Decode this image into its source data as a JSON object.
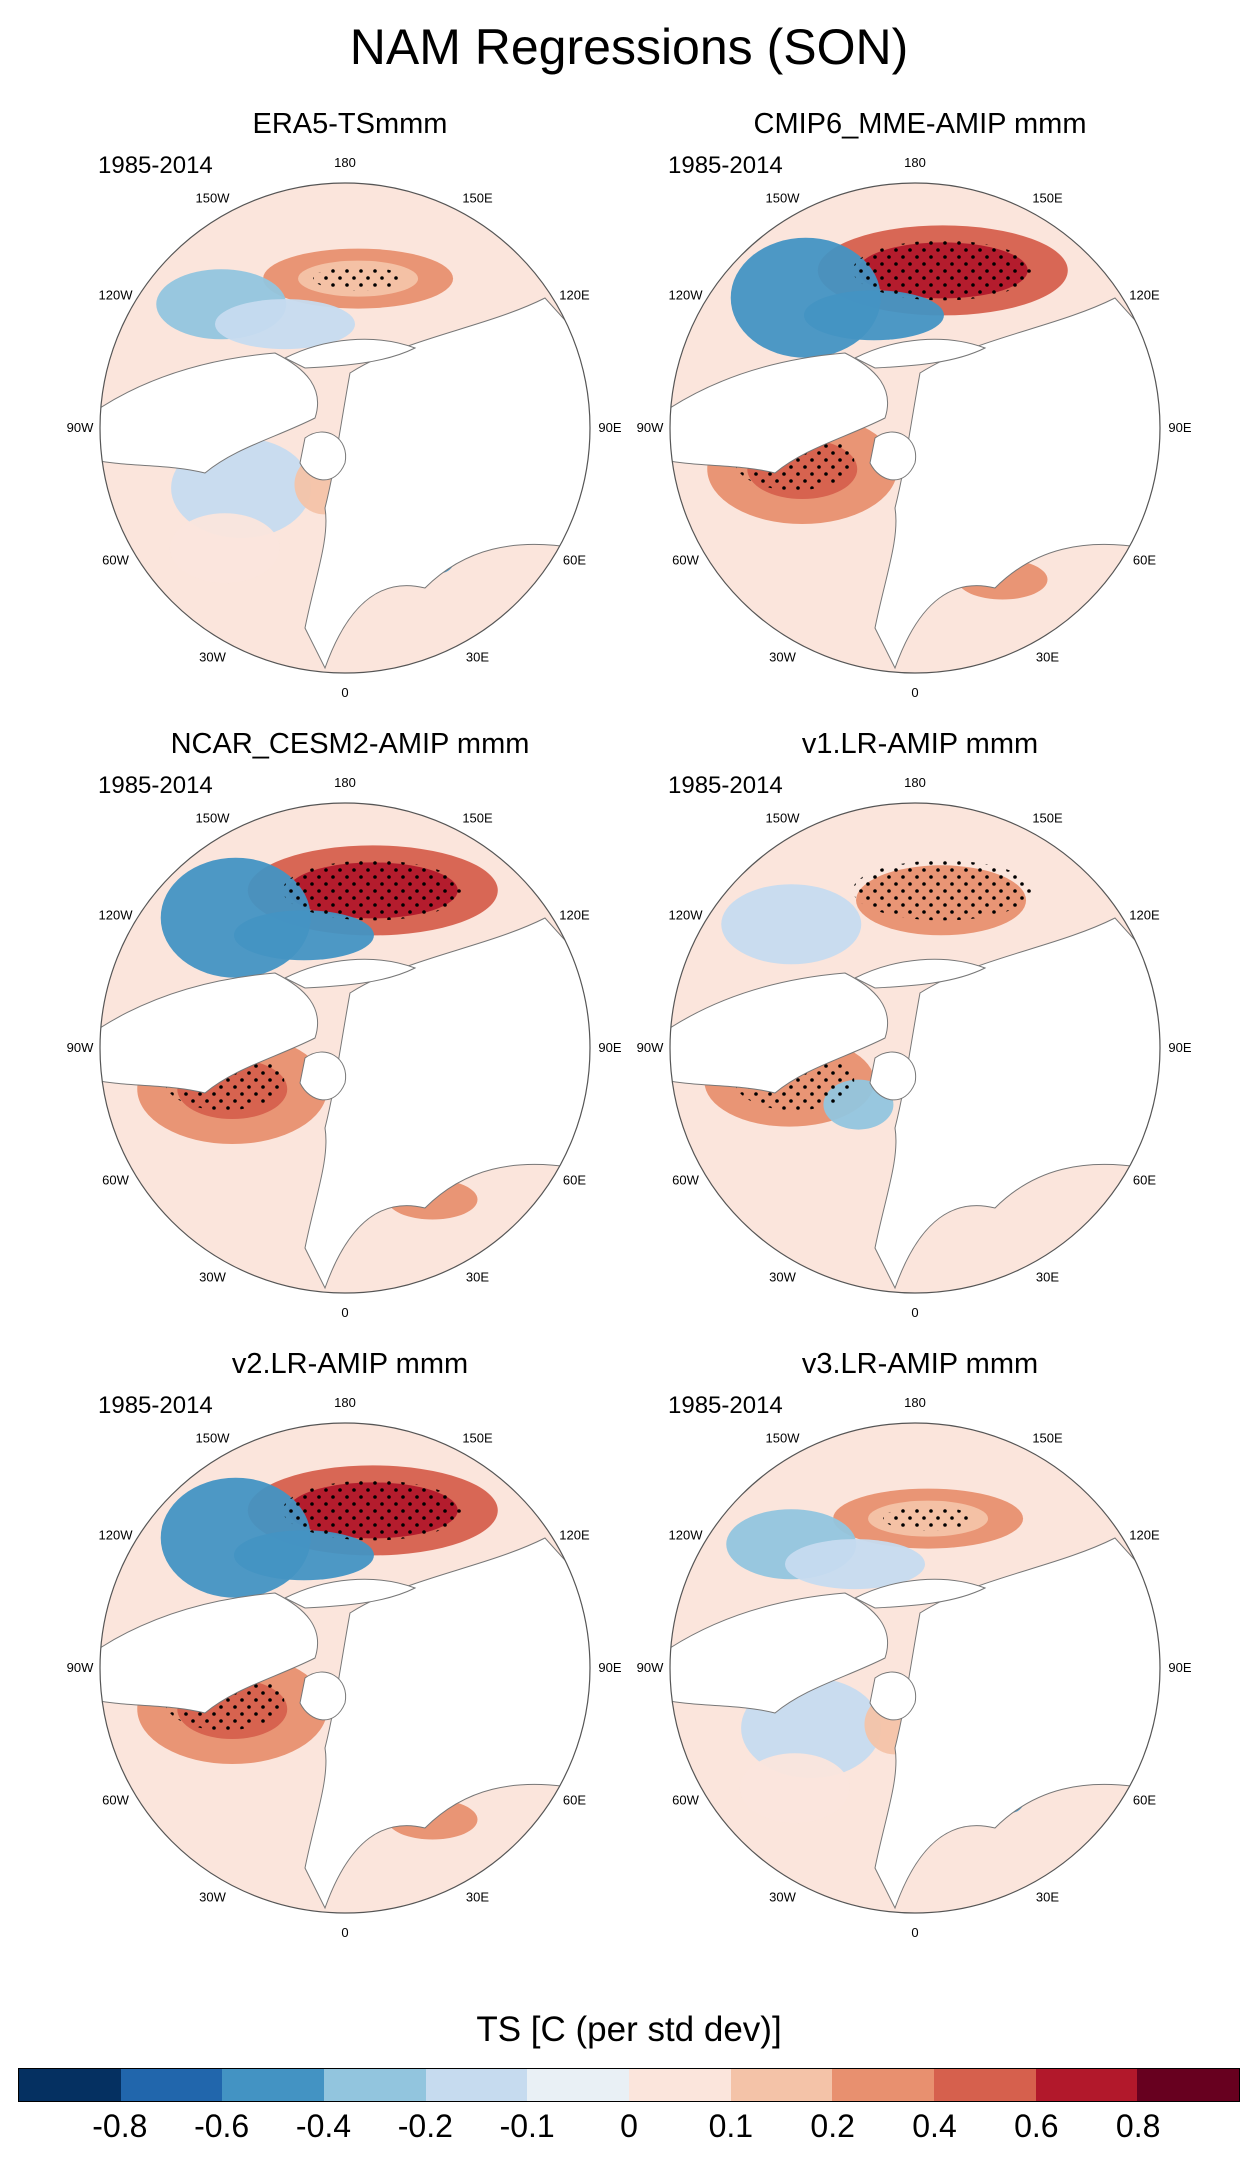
{
  "title": "NAM Regressions (SON)",
  "period": "1985-2014",
  "lon_labels": [
    "180",
    "150E",
    "120E",
    "90E",
    "60E",
    "30E",
    "0",
    "30W",
    "60W",
    "90W",
    "120W",
    "150W"
  ],
  "panels": [
    {
      "title": "ERA5-TSmmm",
      "pattern": "weak"
    },
    {
      "title": "CMIP6_MME-AMIP  mmm",
      "pattern": "strong"
    },
    {
      "title": "NCAR_CESM2-AMIP  mmm",
      "pattern": "strong"
    },
    {
      "title": "v1.LR-AMIP  mmm",
      "pattern": "moderate"
    },
    {
      "title": "v2.LR-AMIP  mmm",
      "pattern": "strong"
    },
    {
      "title": "v3.LR-AMIP  mmm",
      "pattern": "weak"
    }
  ],
  "colorbar": {
    "title": "TS [C (per std dev)]",
    "labels": [
      "-0.8",
      "-0.6",
      "-0.4",
      "-0.2",
      "-0.1",
      "0",
      "0.1",
      "0.2",
      "0.4",
      "0.6",
      "0.8"
    ],
    "colors": [
      "#053061",
      "#2166ac",
      "#4393c3",
      "#92c5de",
      "#c6dbef",
      "#e9f0f5",
      "#fbe5dc",
      "#f4c3a8",
      "#e8906f",
      "#d6604d",
      "#b2182b",
      "#67001f"
    ]
  }
}
